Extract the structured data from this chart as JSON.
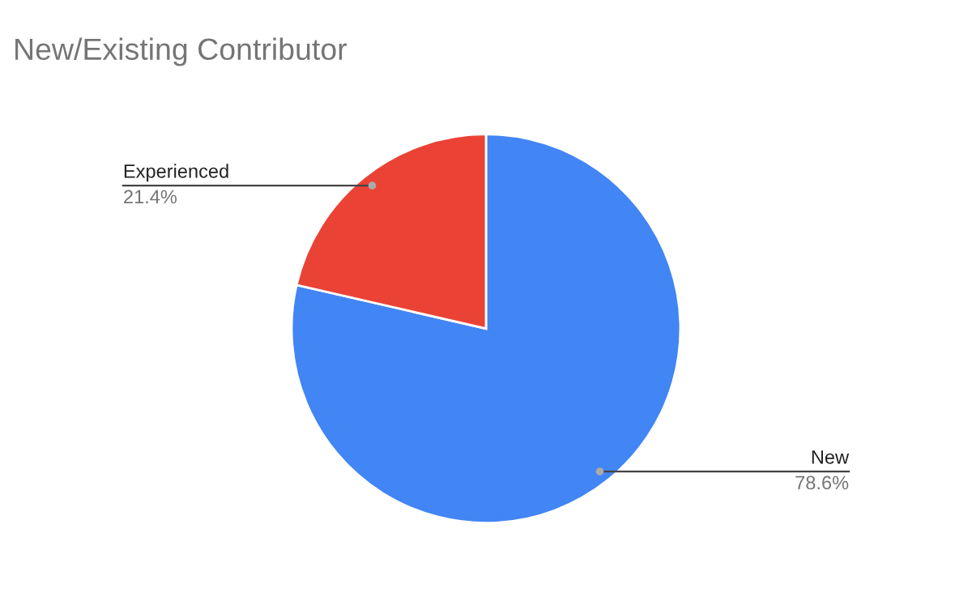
{
  "chart_data": {
    "type": "pie",
    "title": "New/Existing Contributor",
    "categories": [
      "New",
      "Experienced"
    ],
    "values": [
      78.6,
      21.4
    ],
    "colors": [
      "#4285f4",
      "#ea4335"
    ],
    "value_labels": [
      "78.6%",
      "21.4%"
    ]
  }
}
